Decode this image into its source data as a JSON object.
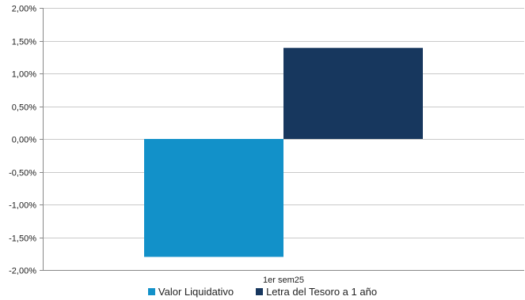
{
  "chart_data": {
    "type": "bar",
    "categories": [
      "1er sem25"
    ],
    "series": [
      {
        "name": "Valor Liquidativo",
        "values": [
          -1.8
        ],
        "color": "#1291c9"
      },
      {
        "name": "Letra del Tesoro a 1 año",
        "values": [
          1.39
        ],
        "color": "#17375e"
      }
    ],
    "ylim": [
      -2.0,
      2.0
    ],
    "yticks": [
      "2,00%",
      "1,50%",
      "1,00%",
      "0,50%",
      "0,00%",
      "-0,50%",
      "-1,00%",
      "-1,50%",
      "-2,00%"
    ],
    "ytick_values": [
      2.0,
      1.5,
      1.0,
      0.5,
      0.0,
      -0.5,
      -1.0,
      -1.5,
      -2.0
    ],
    "grid": true,
    "legend_position": "bottom",
    "title": "",
    "xlabel": "",
    "ylabel": ""
  }
}
